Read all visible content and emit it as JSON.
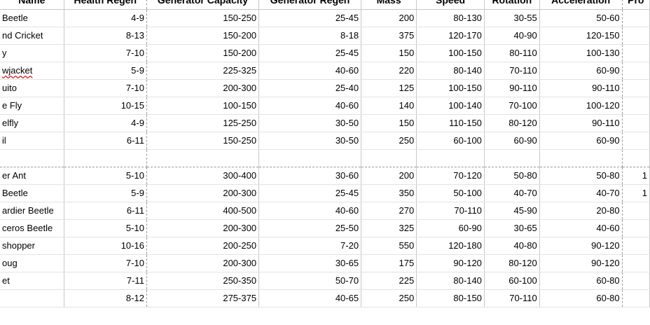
{
  "header": [
    "Name",
    "Health Regen",
    "Generator Capacity",
    "Generator Regen",
    "Mass",
    "Speed",
    "Rotation",
    "Acceleration",
    "Pro"
  ],
  "rows": [
    [
      "Beetle",
      "4-9",
      "150-250",
      "25-45",
      "200",
      "80-130",
      "30-55",
      "50-60",
      ""
    ],
    [
      "nd Cricket",
      "8-13",
      "150-200",
      "8-18",
      "375",
      "120-170",
      "40-90",
      "120-150",
      ""
    ],
    [
      "y",
      "7-10",
      "150-200",
      "25-45",
      "150",
      "100-150",
      "80-110",
      "100-130",
      ""
    ],
    [
      "wjacket",
      "5-9",
      "225-325",
      "40-60",
      "220",
      "80-140",
      "70-110",
      "60-90",
      ""
    ],
    [
      "uito",
      "7-10",
      "200-300",
      "25-40",
      "125",
      "100-150",
      "90-110",
      "90-110",
      ""
    ],
    [
      "e Fly",
      "10-15",
      "100-150",
      "40-60",
      "140",
      "100-140",
      "70-100",
      "100-120",
      ""
    ],
    [
      "elfly",
      "4-9",
      "125-250",
      "30-50",
      "150",
      "110-150",
      "80-120",
      "90-110",
      ""
    ],
    [
      "il",
      "6-11",
      "150-250",
      "30-50",
      "250",
      "60-100",
      "60-90",
      "60-90",
      ""
    ],
    [
      "",
      "",
      "",
      "",
      "",
      "",
      "",
      "",
      ""
    ],
    [
      "er Ant",
      "5-10",
      "300-400",
      "30-60",
      "200",
      "70-120",
      "50-80",
      "50-80",
      "1"
    ],
    [
      "Beetle",
      "5-9",
      "200-300",
      "25-45",
      "350",
      "50-100",
      "40-70",
      "40-70",
      "1"
    ],
    [
      "ardier Beetle",
      "6-11",
      "400-500",
      "40-60",
      "270",
      "70-110",
      "45-90",
      "20-80",
      ""
    ],
    [
      "ceros Beetle",
      "5-10",
      "200-300",
      "25-50",
      "325",
      "60-90",
      "30-65",
      "40-60",
      ""
    ],
    [
      "shopper",
      "10-16",
      "200-250",
      "7-20",
      "550",
      "120-180",
      "40-80",
      "90-120",
      ""
    ],
    [
      "oug",
      "7-10",
      "200-300",
      "30-65",
      "175",
      "90-120",
      "80-120",
      "90-120",
      ""
    ],
    [
      "et",
      "7-11",
      "250-350",
      "50-70",
      "225",
      "80-140",
      "60-100",
      "60-80",
      ""
    ],
    [
      "",
      "8-12",
      "275-375",
      "40-65",
      "250",
      "80-150",
      "70-110",
      "60-80",
      ""
    ]
  ],
  "spellcheck_row": 3
}
